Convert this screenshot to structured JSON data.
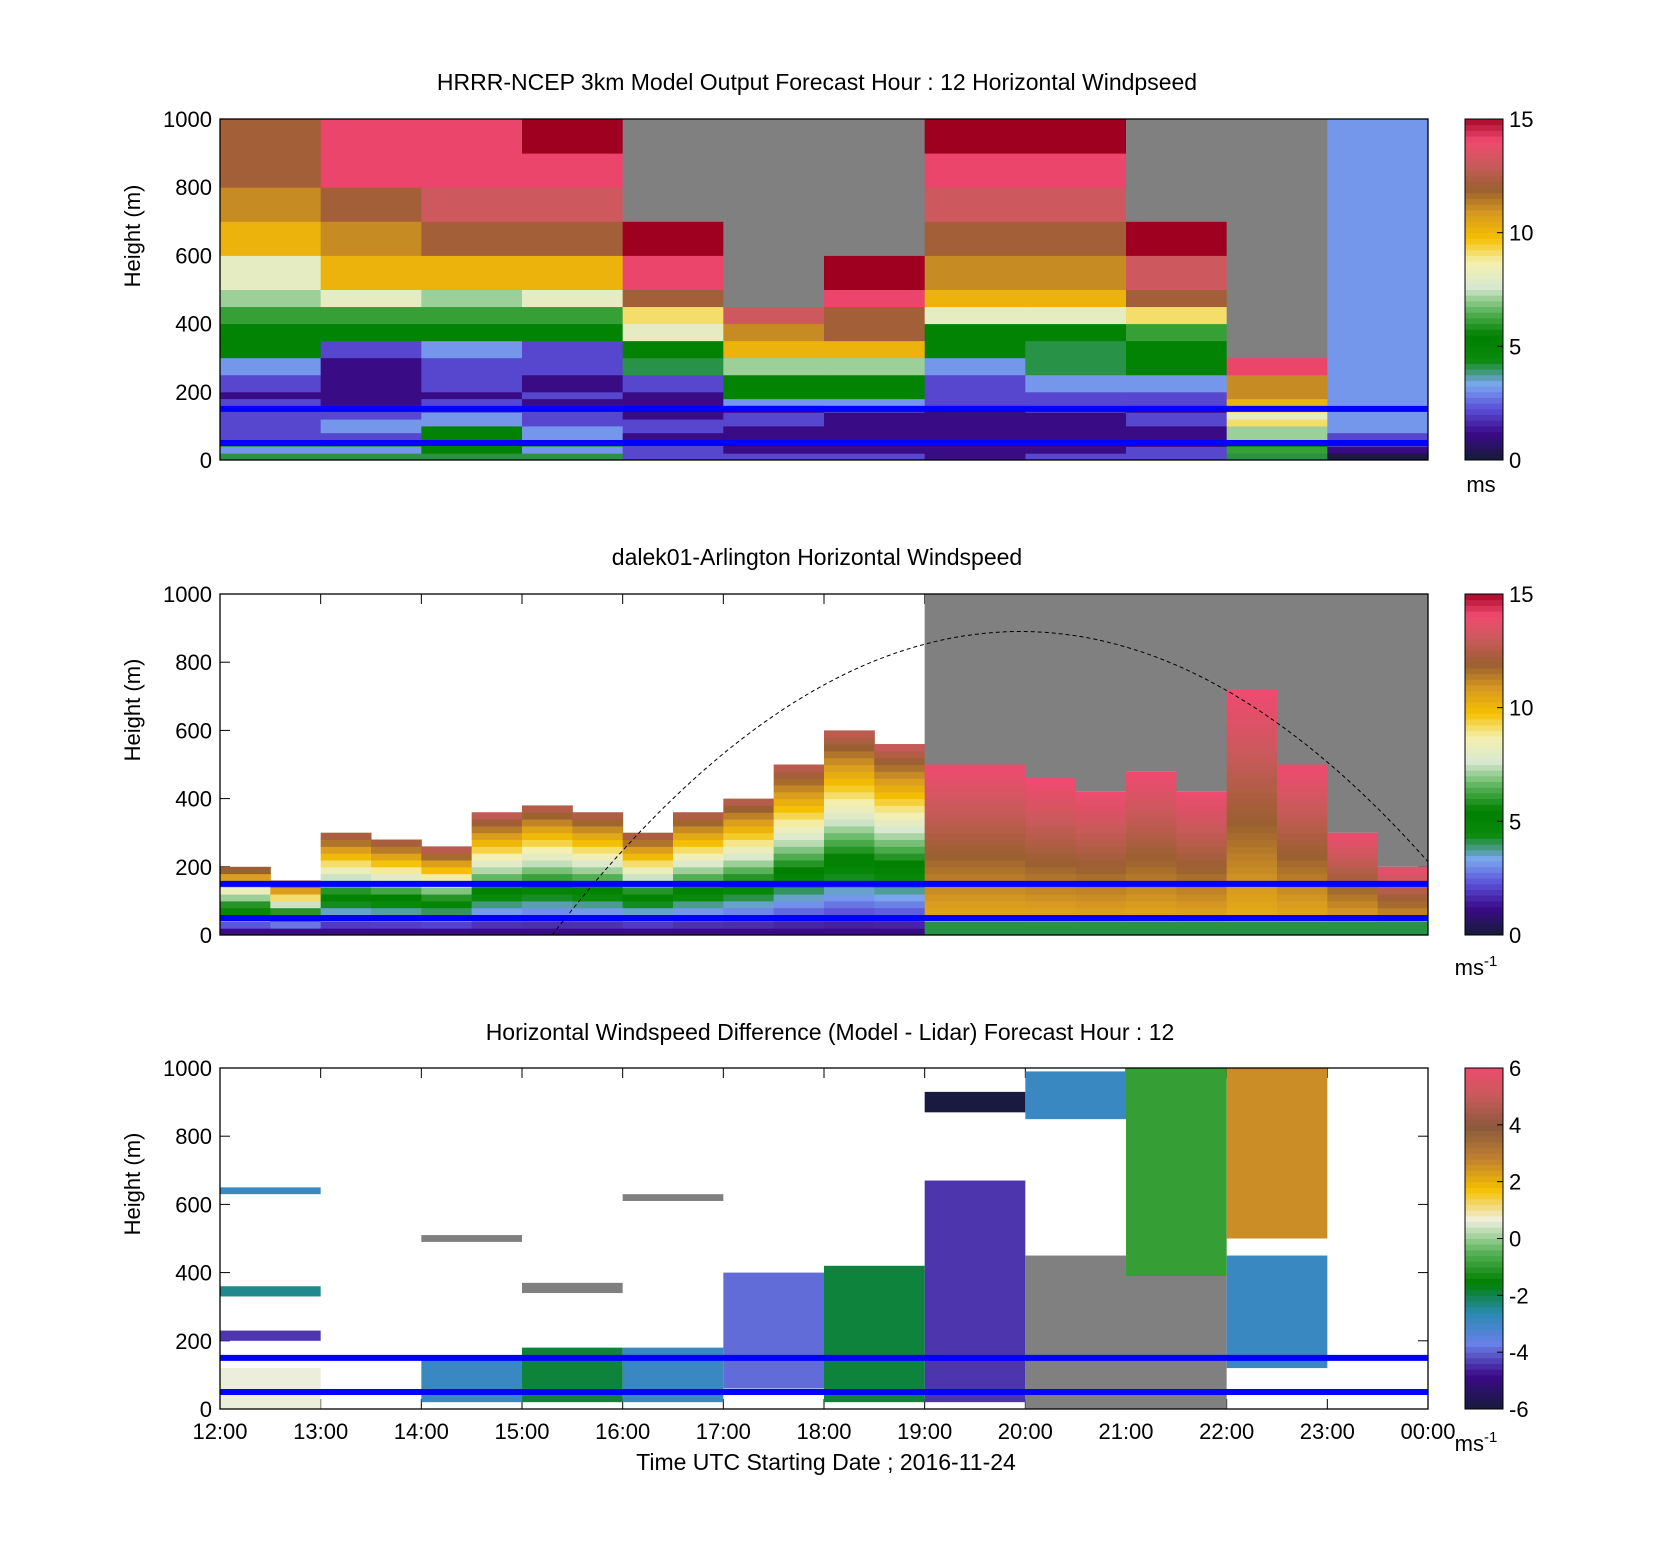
{
  "figure": {
    "xlabel": "Time UTC  Starting Date ; 2016-11-24",
    "xtick_labels": [
      "12:00",
      "13:00",
      "14:00",
      "15:00",
      "16:00",
      "17:00",
      "18:00",
      "19:00",
      "20:00",
      "21:00",
      "22:00",
      "23:00",
      "00:00"
    ],
    "ylabel": "Height (m)",
    "ytick_labels": [
      "0",
      "200",
      "400",
      "600",
      "800",
      "1000"
    ]
  },
  "colors": {
    "positive_ramp": [
      "#8b0000",
      "#c8102e",
      "#e8365a",
      "#ff6b8a",
      "#c85a5a",
      "#8b5a3c",
      "#b07838",
      "#d89a20",
      "#f5b800",
      "#f5e88a",
      "#f0eac8"
    ],
    "missing": "#808080",
    "reference_lines": "#0000ff"
  },
  "chart_data": [
    {
      "type": "heatmap",
      "title": "HRRR-NCEP 3km Model Output   Forecast Hour : 12 Horizontal Windpseed",
      "xlabel": "",
      "ylabel": "Height (m)",
      "xlim": [
        0,
        12
      ],
      "ylim": [
        0,
        1000
      ],
      "colorbar": {
        "min": 0,
        "max": 15,
        "ticks": [
          "0",
          "5",
          "10",
          "15"
        ],
        "unit": "ms"
      },
      "reference_heights_m": [
        150,
        50
      ],
      "rows": [
        {
          "y0": 0,
          "y1": 20,
          "v": [
            4,
            4,
            4,
            4,
            2,
            2,
            2,
            1,
            2,
            2,
            4,
            0,
            null
          ]
        },
        {
          "y0": 20,
          "y1": 40,
          "v": [
            3,
            3,
            5,
            3,
            2,
            1,
            1,
            1,
            1,
            2,
            6,
            1,
            null
          ]
        },
        {
          "y0": 40,
          "y1": 60,
          "v": [
            4,
            4,
            5,
            4,
            2,
            1,
            1,
            1,
            1,
            1,
            5,
            2,
            null
          ]
        },
        {
          "y0": 60,
          "y1": 80,
          "v": [
            2,
            2,
            5,
            3,
            1,
            1,
            1,
            1,
            1,
            1,
            7,
            2,
            null
          ]
        },
        {
          "y0": 80,
          "y1": 100,
          "v": [
            2,
            3,
            5,
            3,
            2,
            1,
            1,
            1,
            1,
            1,
            7,
            3,
            null
          ]
        },
        {
          "y0": 100,
          "y1": 120,
          "v": [
            2,
            3,
            3,
            2,
            2,
            2,
            1,
            1,
            1,
            2,
            9,
            3,
            null
          ]
        },
        {
          "y0": 120,
          "y1": 140,
          "v": [
            2,
            2,
            3,
            2,
            1,
            2,
            1,
            1,
            1,
            2,
            8,
            3,
            null
          ]
        },
        {
          "y0": 140,
          "y1": 160,
          "v": [
            2,
            2,
            2,
            2,
            1,
            1,
            2,
            1,
            2,
            1,
            9,
            3,
            null
          ]
        },
        {
          "y0": 160,
          "y1": 180,
          "v": [
            2,
            1,
            2,
            1,
            1,
            3,
            3,
            2,
            2,
            2,
            10,
            3,
            null
          ]
        },
        {
          "y0": 180,
          "y1": 200,
          "v": [
            1,
            1,
            1,
            2,
            1,
            5,
            5,
            2,
            2,
            2,
            11,
            3,
            null
          ]
        },
        {
          "y0": 200,
          "y1": 250,
          "v": [
            2,
            1,
            2,
            1,
            2,
            5,
            5,
            2,
            3,
            3,
            11,
            3,
            null
          ]
        },
        {
          "y0": 250,
          "y1": 300,
          "v": [
            3,
            1,
            2,
            2,
            4,
            7,
            7,
            3,
            4,
            5,
            14,
            3,
            null
          ]
        },
        {
          "y0": 300,
          "y1": 350,
          "v": [
            5,
            2,
            3,
            2,
            5,
            10,
            10,
            5,
            4,
            5,
            null,
            3,
            null
          ]
        },
        {
          "y0": 350,
          "y1": 400,
          "v": [
            5,
            5,
            5,
            5,
            8,
            11,
            12,
            5,
            5,
            6,
            null,
            3,
            null
          ]
        },
        {
          "y0": 400,
          "y1": 450,
          "v": [
            6,
            6,
            6,
            6,
            9,
            13,
            12,
            8,
            8,
            9,
            null,
            3,
            null
          ]
        },
        {
          "y0": 450,
          "y1": 500,
          "v": [
            7,
            8,
            7,
            8,
            12,
            null,
            14,
            10,
            10,
            12,
            null,
            3,
            null
          ]
        },
        {
          "y0": 500,
          "y1": 600,
          "v": [
            8,
            10,
            10,
            10,
            14,
            null,
            15,
            11,
            11,
            13,
            null,
            3,
            null
          ]
        },
        {
          "y0": 600,
          "y1": 700,
          "v": [
            10,
            11,
            12,
            12,
            15,
            null,
            null,
            12,
            12,
            15,
            null,
            3,
            null
          ]
        },
        {
          "y0": 700,
          "y1": 800,
          "v": [
            11,
            12,
            13,
            13,
            null,
            null,
            null,
            13,
            13,
            null,
            null,
            3,
            null
          ]
        },
        {
          "y0": 800,
          "y1": 900,
          "v": [
            12,
            14,
            14,
            14,
            null,
            null,
            null,
            14,
            14,
            null,
            null,
            3,
            null
          ]
        },
        {
          "y0": 900,
          "y1": 1000,
          "v": [
            12,
            14,
            14,
            15,
            null,
            null,
            null,
            15,
            15,
            null,
            null,
            3,
            null
          ]
        }
      ]
    },
    {
      "type": "heatmap",
      "title": "dalek01-Arlington  Horizontal Windspeed",
      "xlabel": "",
      "ylabel": "Height (m)",
      "xlim": [
        0,
        12
      ],
      "ylim": [
        0,
        1000
      ],
      "colorbar": {
        "min": 0,
        "max": 15,
        "ticks": [
          "0",
          "5",
          "10",
          "15"
        ],
        "unit": "ms-1"
      },
      "reference_heights_m": [
        150,
        50
      ],
      "overlay": "dashed curve rising from 16:00 near 0 m to a peak near 890 m at 20:00 and back down toward 00:00",
      "columns_x": [
        0.25,
        0.75,
        1.25,
        1.75,
        2.25,
        2.75,
        3.25,
        3.75,
        4.25,
        4.75,
        5.25,
        5.75,
        6.25,
        6.75,
        7.25,
        7.75,
        8.25,
        8.75,
        9.25,
        9.75,
        10.25,
        10.75,
        11.25,
        11.75
      ],
      "column_top_m": [
        200,
        150,
        300,
        280,
        250,
        350,
        380,
        360,
        300,
        360,
        400,
        500,
        600,
        550,
        500,
        500,
        450,
        420,
        480,
        420,
        720,
        500,
        300,
        200
      ],
      "column_profile": "wind speed increasing with height; low values (1-4) near surface, moderate (5-9) near 100-250 m, high (10-14) aloft"
    },
    {
      "type": "heatmap",
      "title": "Horizontal Windspeed Difference (Model - Lidar) Forecast Hour : 12",
      "xlabel": "Time UTC  Starting Date ; 2016-11-24",
      "ylabel": "Height (m)",
      "xlim": [
        0,
        12
      ],
      "ylim": [
        0,
        1000
      ],
      "colorbar": {
        "min": -6,
        "max": 6,
        "ticks": [
          "-6",
          "-4",
          "-2",
          "0",
          "2",
          "4",
          "6"
        ],
        "unit": "ms-1"
      },
      "reference_heights_m": [
        150,
        50
      ],
      "segments": [
        {
          "x": 0,
          "y0": 0,
          "y1": 120,
          "v": 0.5
        },
        {
          "x": 0,
          "y0": 200,
          "y1": 230,
          "v": -4.5
        },
        {
          "x": 0,
          "y0": 330,
          "y1": 360,
          "v": -2.5
        },
        {
          "x": 0,
          "y0": 630,
          "y1": 650,
          "v": -3
        },
        {
          "x": 2,
          "y0": 20,
          "y1": 150,
          "v": -3
        },
        {
          "x": 2,
          "y0": 490,
          "y1": 510,
          "v": null
        },
        {
          "x": 3,
          "y0": 20,
          "y1": 180,
          "v": -2
        },
        {
          "x": 3,
          "y0": 340,
          "y1": 370,
          "v": null
        },
        {
          "x": 4,
          "y0": 20,
          "y1": 180,
          "v": -3
        },
        {
          "x": 4,
          "y0": 610,
          "y1": 630,
          "v": null
        },
        {
          "x": 5,
          "y0": 60,
          "y1": 400,
          "v": -4
        },
        {
          "x": 6,
          "y0": 20,
          "y1": 420,
          "v": -2
        },
        {
          "x": 7,
          "y0": 20,
          "y1": 670,
          "v": -4.5
        },
        {
          "x": 7,
          "y0": 870,
          "y1": 930,
          "v": -6
        },
        {
          "x": 8,
          "y0": 0,
          "y1": 450,
          "v": null
        },
        {
          "x": 8,
          "y0": 850,
          "y1": 990,
          "v": -3
        },
        {
          "x": 9,
          "y0": 0,
          "y1": 390,
          "v": null
        },
        {
          "x": 9,
          "y0": 390,
          "y1": 1000,
          "v": -1
        },
        {
          "x": 10,
          "y0": 120,
          "y1": 450,
          "v": -3
        },
        {
          "x": 10,
          "y0": 500,
          "y1": 1000,
          "v": 2.5
        }
      ]
    }
  ]
}
